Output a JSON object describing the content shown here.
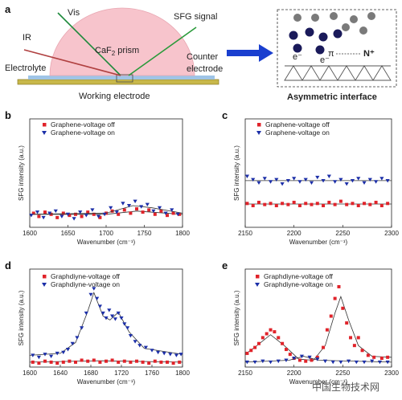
{
  "schematic": {
    "panel_label": "a",
    "vis": "Vis",
    "ir": "IR",
    "sfg_signal": "SFG signal",
    "electrolyte": "Electrolyte",
    "prism_main": "CaF",
    "prism_sub": "2",
    "prism_tail": " prism",
    "counter_1": "Counter",
    "counter_2": "electrode",
    "working": "Working electrode",
    "asym": "Asymmetric interface",
    "pi": "π",
    "n_plus": "N⁺",
    "e_minus": "e⁻",
    "colors": {
      "prism": "#f7c4cc",
      "electrode": "#c8b84a",
      "electrolyte": "#9fc4e6",
      "arrow": "#1a3fcf",
      "vis": "#1f8a3c",
      "ir": "#b04040",
      "sfg": "#2a9a3a"
    }
  },
  "legend_markers": {
    "off": "#e0232a",
    "on": "#1c2fa8"
  },
  "watermark": "中国生物技术网",
  "chart_data": [
    {
      "panel": "b",
      "type": "scatter",
      "xlabel": "Wavenumber (cm⁻¹)",
      "ylabel": "SFG intensity (a.u.)",
      "xlim": [
        1600,
        1800
      ],
      "ylim": [
        0,
        1
      ],
      "xticks": [
        "1600",
        "1650",
        "1700",
        "1750",
        "1800"
      ],
      "series": [
        {
          "name": "Graphene-voltage off",
          "marker": "square",
          "color": "#e0232a",
          "x": [
            1605,
            1612,
            1620,
            1628,
            1636,
            1644,
            1652,
            1660,
            1668,
            1676,
            1684,
            1692,
            1700,
            1708,
            1716,
            1724,
            1732,
            1740,
            1748,
            1756,
            1764,
            1772,
            1780,
            1788,
            1796
          ],
          "y": [
            0.13,
            0.1,
            0.14,
            0.12,
            0.09,
            0.13,
            0.11,
            0.12,
            0.1,
            0.14,
            0.12,
            0.09,
            0.13,
            0.15,
            0.12,
            0.16,
            0.13,
            0.17,
            0.14,
            0.16,
            0.12,
            0.15,
            0.11,
            0.13,
            0.12
          ],
          "fit": [
            [
              1600,
              0.12
            ],
            [
              1700,
              0.12
            ],
            [
              1740,
              0.15
            ],
            [
              1800,
              0.12
            ]
          ]
        },
        {
          "name": "Graphene-voltage on",
          "marker": "triangle-down",
          "color": "#1c2fa8",
          "x": [
            1602,
            1610,
            1618,
            1626,
            1634,
            1642,
            1650,
            1658,
            1666,
            1674,
            1682,
            1690,
            1698,
            1706,
            1714,
            1722,
            1730,
            1738,
            1746,
            1754,
            1762,
            1770,
            1778,
            1786,
            1794
          ],
          "y": [
            0.11,
            0.14,
            0.09,
            0.13,
            0.15,
            0.1,
            0.12,
            0.08,
            0.14,
            0.11,
            0.16,
            0.1,
            0.12,
            0.18,
            0.14,
            0.22,
            0.2,
            0.24,
            0.19,
            0.21,
            0.15,
            0.18,
            0.13,
            0.16,
            0.12
          ],
          "fit": [
            [
              1600,
              0.12
            ],
            [
              1700,
              0.13
            ],
            [
              1735,
              0.2
            ],
            [
              1760,
              0.18
            ],
            [
              1800,
              0.13
            ]
          ]
        }
      ]
    },
    {
      "panel": "c",
      "type": "scatter",
      "xlabel": "Wavenumber (cm⁻¹)",
      "ylabel": "SFG intensity (a.u.)",
      "xlim": [
        2150,
        2300
      ],
      "ylim": [
        0,
        1
      ],
      "xticks": [
        "2150",
        "2200",
        "2250",
        "2300"
      ],
      "series": [
        {
          "name": "Graphene-voltage off",
          "marker": "square",
          "color": "#e0232a",
          "x": [
            2152,
            2158,
            2164,
            2170,
            2176,
            2182,
            2188,
            2194,
            2200,
            2206,
            2212,
            2218,
            2224,
            2230,
            2236,
            2242,
            2248,
            2254,
            2260,
            2266,
            2272,
            2278,
            2284,
            2290,
            2296
          ],
          "y": [
            0.22,
            0.2,
            0.23,
            0.21,
            0.22,
            0.2,
            0.22,
            0.21,
            0.23,
            0.2,
            0.22,
            0.21,
            0.22,
            0.2,
            0.23,
            0.21,
            0.24,
            0.21,
            0.22,
            0.2,
            0.22,
            0.21,
            0.23,
            0.2,
            0.22
          ],
          "fit": [
            [
              2150,
              0.215
            ],
            [
              2300,
              0.215
            ]
          ]
        },
        {
          "name": "Graphene-voltage on",
          "marker": "triangle-down",
          "color": "#1c2fa8",
          "x": [
            2152,
            2158,
            2164,
            2170,
            2176,
            2182,
            2188,
            2194,
            2200,
            2206,
            2212,
            2218,
            2224,
            2230,
            2236,
            2242,
            2248,
            2254,
            2260,
            2266,
            2272,
            2278,
            2284,
            2290,
            2296
          ],
          "y": [
            0.47,
            0.44,
            0.41,
            0.45,
            0.42,
            0.44,
            0.4,
            0.43,
            0.45,
            0.42,
            0.44,
            0.41,
            0.46,
            0.43,
            0.47,
            0.42,
            0.44,
            0.4,
            0.43,
            0.45,
            0.41,
            0.44,
            0.42,
            0.45,
            0.43
          ],
          "fit": [
            [
              2150,
              0.43
            ],
            [
              2300,
              0.43
            ]
          ]
        }
      ]
    },
    {
      "panel": "d",
      "type": "scatter",
      "xlabel": "Wavenumber (cm⁻¹)",
      "ylabel": "SFG intensity (a.u.)",
      "xlim": [
        1600,
        1800
      ],
      "ylim": [
        0,
        1
      ],
      "xticks": [
        "1600",
        "1640",
        "1680",
        "1720",
        "1760",
        "1800"
      ],
      "series": [
        {
          "name": "Graphdiyne-voltage off",
          "marker": "square",
          "color": "#e0232a",
          "x": [
            1604,
            1612,
            1620,
            1628,
            1636,
            1644,
            1652,
            1660,
            1668,
            1676,
            1684,
            1692,
            1700,
            1708,
            1716,
            1724,
            1732,
            1740,
            1748,
            1756,
            1764,
            1772,
            1780,
            1788,
            1796
          ],
          "y": [
            0.05,
            0.04,
            0.06,
            0.05,
            0.04,
            0.05,
            0.06,
            0.05,
            0.07,
            0.06,
            0.07,
            0.05,
            0.06,
            0.07,
            0.05,
            0.06,
            0.05,
            0.06,
            0.05,
            0.04,
            0.06,
            0.05,
            0.05,
            0.04,
            0.05
          ],
          "fit": [
            [
              1600,
              0.05
            ],
            [
              1690,
              0.065
            ],
            [
              1800,
              0.05
            ]
          ]
        },
        {
          "name": "Graphdiyne-voltage on",
          "marker": "triangle-down",
          "color": "#1c2fa8",
          "x": [
            1604,
            1612,
            1620,
            1628,
            1636,
            1644,
            1650,
            1656,
            1662,
            1668,
            1674,
            1680,
            1684,
            1688,
            1692,
            1696,
            1700,
            1704,
            1708,
            1712,
            1716,
            1720,
            1724,
            1728,
            1732,
            1738,
            1744,
            1752,
            1760,
            1768,
            1776,
            1784,
            1792,
            1798
          ],
          "y": [
            0.12,
            0.1,
            0.13,
            0.11,
            0.14,
            0.15,
            0.18,
            0.24,
            0.3,
            0.4,
            0.55,
            0.74,
            0.8,
            0.7,
            0.62,
            0.55,
            0.5,
            0.58,
            0.52,
            0.49,
            0.55,
            0.5,
            0.44,
            0.4,
            0.32,
            0.26,
            0.22,
            0.2,
            0.17,
            0.15,
            0.14,
            0.13,
            0.12,
            0.13
          ],
          "fit": [
            [
              1600,
              0.12
            ],
            [
              1640,
              0.14
            ],
            [
              1660,
              0.25
            ],
            [
              1675,
              0.55
            ],
            [
              1684,
              0.76
            ],
            [
              1696,
              0.52
            ],
            [
              1705,
              0.48
            ],
            [
              1716,
              0.56
            ],
            [
              1730,
              0.36
            ],
            [
              1750,
              0.19
            ],
            [
              1800,
              0.13
            ]
          ]
        }
      ]
    },
    {
      "panel": "e",
      "type": "scatter",
      "xlabel": "Wavenumber (cm⁻¹)",
      "ylabel": "SFG intensity (a.u.)",
      "xlim": [
        2150,
        2300
      ],
      "ylim": [
        0,
        1
      ],
      "xticks": [
        "2150",
        "2200",
        "2250",
        "2300"
      ],
      "series": [
        {
          "name": "Graphdiyne-voltage off",
          "marker": "square",
          "color": "#e0232a",
          "x": [
            2152,
            2156,
            2160,
            2164,
            2168,
            2172,
            2176,
            2180,
            2184,
            2188,
            2192,
            2196,
            2200,
            2206,
            2212,
            2218,
            2224,
            2230,
            2234,
            2238,
            2242,
            2246,
            2250,
            2254,
            2258,
            2262,
            2266,
            2270,
            2276,
            2282,
            2290,
            2296
          ],
          "y": [
            0.14,
            0.17,
            0.2,
            0.24,
            0.3,
            0.34,
            0.38,
            0.36,
            0.3,
            0.24,
            0.18,
            0.13,
            0.09,
            0.07,
            0.06,
            0.07,
            0.1,
            0.2,
            0.38,
            0.52,
            0.7,
            0.82,
            0.6,
            0.45,
            0.3,
            0.22,
            0.3,
            0.17,
            0.12,
            0.1,
            0.09,
            0.1
          ],
          "fit": [
            [
              2150,
              0.13
            ],
            [
              2162,
              0.22
            ],
            [
              2176,
              0.33
            ],
            [
              2190,
              0.22
            ],
            [
              2205,
              0.08
            ],
            [
              2220,
              0.07
            ],
            [
              2232,
              0.22
            ],
            [
              2242,
              0.55
            ],
            [
              2248,
              0.72
            ],
            [
              2256,
              0.48
            ],
            [
              2266,
              0.22
            ],
            [
              2280,
              0.11
            ],
            [
              2300,
              0.1
            ]
          ]
        },
        {
          "name": "Graphdiyne-voltage on",
          "marker": "triangle-down",
          "color": "#1c2fa8",
          "x": [
            2152,
            2160,
            2168,
            2176,
            2184,
            2192,
            2200,
            2208,
            2216,
            2224,
            2232,
            2240,
            2248,
            2256,
            2264,
            2272,
            2280,
            2288,
            2296
          ],
          "y": [
            0.05,
            0.05,
            0.06,
            0.05,
            0.06,
            0.07,
            0.09,
            0.11,
            0.1,
            0.08,
            0.06,
            0.05,
            0.05,
            0.06,
            0.05,
            0.05,
            0.06,
            0.05,
            0.05
          ],
          "fit": [
            [
              2150,
              0.05
            ],
            [
              2195,
              0.07
            ],
            [
              2210,
              0.11
            ],
            [
              2225,
              0.07
            ],
            [
              2300,
              0.05
            ]
          ]
        }
      ]
    }
  ]
}
